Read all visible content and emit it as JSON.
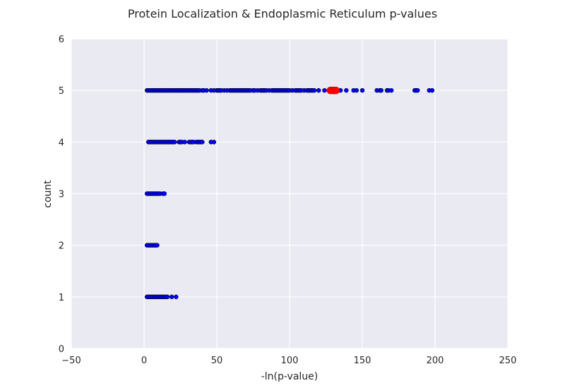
{
  "chart_data": {
    "type": "scatter",
    "title": "Protein Localization & Endoplasmic Reticulum p-values",
    "xlabel": "-ln(p-value)",
    "ylabel": "count",
    "xlim": [
      -50,
      250
    ],
    "ylim": [
      0,
      6
    ],
    "xticks": [
      -50,
      0,
      50,
      100,
      150,
      200,
      250
    ],
    "yticks": [
      0,
      1,
      2,
      3,
      4,
      5,
      6
    ],
    "grid": true,
    "background_color": "#eaeaf2",
    "grid_color": "#ffffff",
    "series": [
      {
        "color": "#0000ff",
        "edge_color": "#000000",
        "points": [
          [
            2,
            5
          ],
          [
            3,
            5
          ],
          [
            4,
            5
          ],
          [
            5,
            5
          ],
          [
            6,
            5
          ],
          [
            7,
            5
          ],
          [
            8,
            5
          ],
          [
            9,
            5
          ],
          [
            10,
            5
          ],
          [
            11,
            5
          ],
          [
            12,
            5
          ],
          [
            13,
            5
          ],
          [
            14,
            5
          ],
          [
            15,
            5
          ],
          [
            16,
            5
          ],
          [
            17,
            5
          ],
          [
            18,
            5
          ],
          [
            19,
            5
          ],
          [
            20,
            5
          ],
          [
            21,
            5
          ],
          [
            22,
            5
          ],
          [
            23,
            5
          ],
          [
            24,
            5
          ],
          [
            25,
            5
          ],
          [
            26,
            5
          ],
          [
            27,
            5
          ],
          [
            28,
            5
          ],
          [
            29,
            5
          ],
          [
            30,
            5
          ],
          [
            31,
            5
          ],
          [
            32,
            5
          ],
          [
            33,
            5
          ],
          [
            34,
            5
          ],
          [
            35,
            5
          ],
          [
            36,
            5
          ],
          [
            37,
            5
          ],
          [
            38,
            5
          ],
          [
            40,
            5
          ],
          [
            41,
            5
          ],
          [
            43,
            5
          ],
          [
            46,
            5
          ],
          [
            48,
            5
          ],
          [
            50,
            5
          ],
          [
            51,
            5
          ],
          [
            52,
            5
          ],
          [
            53,
            5
          ],
          [
            55,
            5
          ],
          [
            57,
            5
          ],
          [
            59,
            5
          ],
          [
            60,
            5
          ],
          [
            61,
            5
          ],
          [
            62,
            5
          ],
          [
            63,
            5
          ],
          [
            64,
            5
          ],
          [
            65,
            5
          ],
          [
            66,
            5
          ],
          [
            67,
            5
          ],
          [
            68,
            5
          ],
          [
            69,
            5
          ],
          [
            70,
            5
          ],
          [
            71,
            5
          ],
          [
            72,
            5
          ],
          [
            73,
            5
          ],
          [
            75,
            5
          ],
          [
            76,
            5
          ],
          [
            78,
            5
          ],
          [
            80,
            5
          ],
          [
            81,
            5
          ],
          [
            82,
            5
          ],
          [
            83,
            5
          ],
          [
            84,
            5
          ],
          [
            86,
            5
          ],
          [
            88,
            5
          ],
          [
            89,
            5
          ],
          [
            90,
            5
          ],
          [
            91,
            5
          ],
          [
            92,
            5
          ],
          [
            93,
            5
          ],
          [
            94,
            5
          ],
          [
            95,
            5
          ],
          [
            96,
            5
          ],
          [
            97,
            5
          ],
          [
            98,
            5
          ],
          [
            99,
            5
          ],
          [
            100,
            5
          ],
          [
            102,
            5
          ],
          [
            104,
            5
          ],
          [
            105,
            5
          ],
          [
            106,
            5
          ],
          [
            107,
            5
          ],
          [
            108,
            5
          ],
          [
            110,
            5
          ],
          [
            112,
            5
          ],
          [
            113,
            5
          ],
          [
            114,
            5
          ],
          [
            115,
            5
          ],
          [
            116,
            5
          ],
          [
            117,
            5
          ],
          [
            120,
            5
          ],
          [
            124,
            5
          ],
          [
            135,
            5
          ],
          [
            139,
            5
          ],
          [
            144,
            5
          ],
          [
            146,
            5
          ],
          [
            150,
            5
          ],
          [
            160,
            5
          ],
          [
            162,
            5
          ],
          [
            163,
            5
          ],
          [
            167,
            5
          ],
          [
            168,
            5
          ],
          [
            170,
            5
          ],
          [
            186,
            5
          ],
          [
            187,
            5
          ],
          [
            188,
            5
          ],
          [
            196,
            5
          ],
          [
            198,
            5
          ],
          [
            3,
            4
          ],
          [
            4,
            4
          ],
          [
            5,
            4
          ],
          [
            6,
            4
          ],
          [
            7,
            4
          ],
          [
            8,
            4
          ],
          [
            9,
            4
          ],
          [
            10,
            4
          ],
          [
            11,
            4
          ],
          [
            12,
            4
          ],
          [
            13,
            4
          ],
          [
            14,
            4
          ],
          [
            15,
            4
          ],
          [
            16,
            4
          ],
          [
            17,
            4
          ],
          [
            18,
            4
          ],
          [
            19,
            4
          ],
          [
            20,
            4
          ],
          [
            21,
            4
          ],
          [
            24,
            4
          ],
          [
            25,
            4
          ],
          [
            26,
            4
          ],
          [
            28,
            4
          ],
          [
            31,
            4
          ],
          [
            32,
            4
          ],
          [
            33,
            4
          ],
          [
            34,
            4
          ],
          [
            36,
            4
          ],
          [
            37,
            4
          ],
          [
            38,
            4
          ],
          [
            39,
            4
          ],
          [
            40,
            4
          ],
          [
            46,
            4
          ],
          [
            48,
            4
          ],
          [
            2,
            3
          ],
          [
            3,
            3
          ],
          [
            4,
            3
          ],
          [
            5,
            3
          ],
          [
            6,
            3
          ],
          [
            7,
            3
          ],
          [
            8,
            3
          ],
          [
            9,
            3
          ],
          [
            10,
            3
          ],
          [
            11,
            3
          ],
          [
            13,
            3
          ],
          [
            14,
            3
          ],
          [
            2,
            2
          ],
          [
            3,
            2
          ],
          [
            4,
            2
          ],
          [
            5,
            2
          ],
          [
            6,
            2
          ],
          [
            7,
            2
          ],
          [
            8,
            2
          ],
          [
            9,
            2
          ],
          [
            2,
            1
          ],
          [
            3,
            1
          ],
          [
            4,
            1
          ],
          [
            5,
            1
          ],
          [
            6,
            1
          ],
          [
            7,
            1
          ],
          [
            8,
            1
          ],
          [
            9,
            1
          ],
          [
            10,
            1
          ],
          [
            11,
            1
          ],
          [
            12,
            1
          ],
          [
            13,
            1
          ],
          [
            14,
            1
          ],
          [
            15,
            1
          ],
          [
            16,
            1
          ],
          [
            19,
            1
          ],
          [
            22,
            1
          ]
        ]
      },
      {
        "color": "#ff0000",
        "edge_color": "#cc0000",
        "points": [
          [
            128,
            5
          ],
          [
            129,
            5
          ],
          [
            130,
            5
          ],
          [
            131,
            5
          ],
          [
            132,
            5
          ]
        ]
      }
    ]
  }
}
